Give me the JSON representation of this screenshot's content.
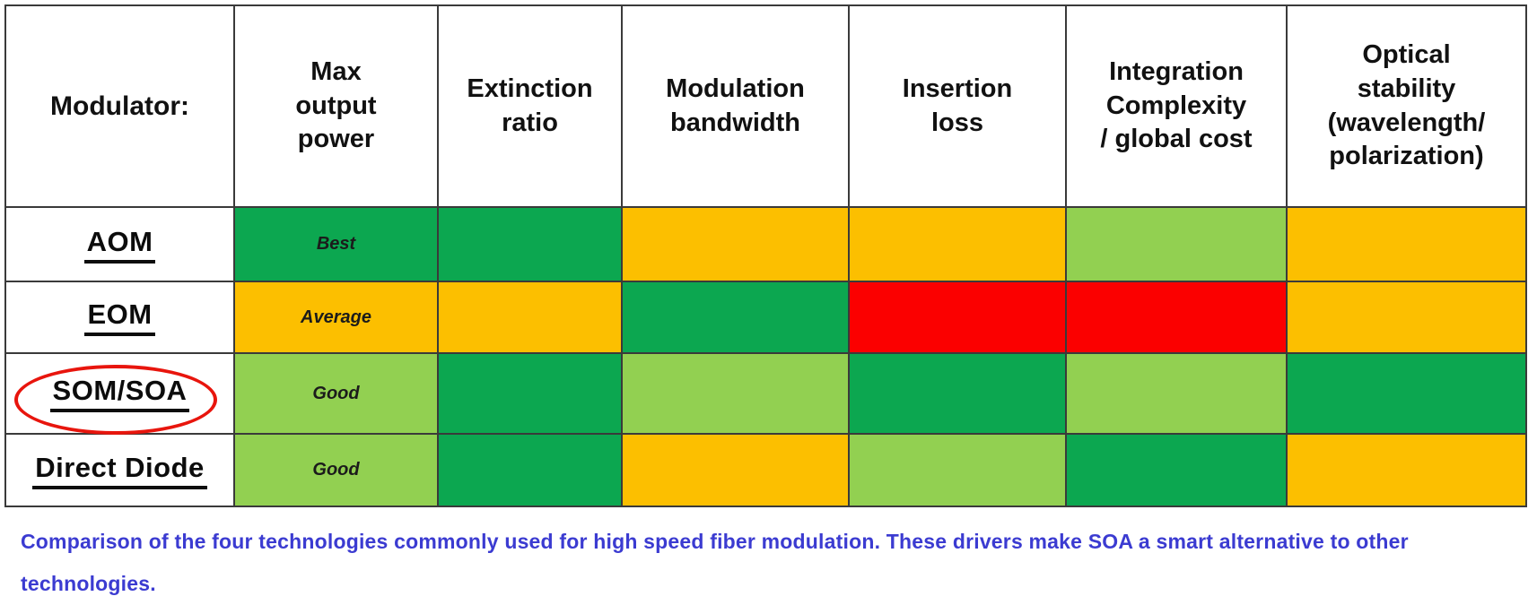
{
  "table": {
    "columns": [
      {
        "key": "modulator",
        "label": "Modulator:"
      },
      {
        "key": "max-output-power",
        "label": "Max\noutput\npower"
      },
      {
        "key": "extinction-ratio",
        "label": "Extinction\nratio"
      },
      {
        "key": "modulation-bandwidth",
        "label": "Modulation\nbandwidth"
      },
      {
        "key": "insertion-loss",
        "label": "Insertion\nloss"
      },
      {
        "key": "integration-complexity",
        "label": "Integration\nComplexity\n/ global cost"
      },
      {
        "key": "optical-stability",
        "label": "Optical\nstability\n(wavelength/\npolarization)"
      }
    ],
    "legend_colors": {
      "green": "#0CA750",
      "light-green": "#92D051",
      "amber": "#FCBF00",
      "red": "#FB0000"
    },
    "visible_rating_labels": {
      "green": "Best",
      "amber": "Average",
      "light-green": "Good"
    },
    "rows": [
      {
        "key": "aom",
        "label": "AOM",
        "circled": false,
        "cells": [
          {
            "level": "green",
            "label": "Best"
          },
          {
            "level": "green",
            "label": ""
          },
          {
            "level": "amber",
            "label": ""
          },
          {
            "level": "amber",
            "label": ""
          },
          {
            "level": "light-green",
            "label": ""
          },
          {
            "level": "amber",
            "label": ""
          }
        ]
      },
      {
        "key": "eom",
        "label": "EOM",
        "circled": false,
        "cells": [
          {
            "level": "amber",
            "label": "Average"
          },
          {
            "level": "amber",
            "label": ""
          },
          {
            "level": "green",
            "label": ""
          },
          {
            "level": "red",
            "label": ""
          },
          {
            "level": "red",
            "label": ""
          },
          {
            "level": "amber",
            "label": ""
          }
        ]
      },
      {
        "key": "som-soa",
        "label": "SOM/SOA",
        "circled": true,
        "cells": [
          {
            "level": "light-green",
            "label": "Good"
          },
          {
            "level": "green",
            "label": ""
          },
          {
            "level": "light-green",
            "label": ""
          },
          {
            "level": "green",
            "label": ""
          },
          {
            "level": "light-green",
            "label": ""
          },
          {
            "level": "green",
            "label": ""
          }
        ]
      },
      {
        "key": "direct-diode",
        "label": "Direct Diode",
        "circled": false,
        "cells": [
          {
            "level": "light-green",
            "label": "Good"
          },
          {
            "level": "green",
            "label": ""
          },
          {
            "level": "amber",
            "label": ""
          },
          {
            "level": "light-green",
            "label": ""
          },
          {
            "level": "green",
            "label": ""
          },
          {
            "level": "amber",
            "label": ""
          }
        ]
      }
    ]
  },
  "caption": {
    "text": "Comparison of the four technologies commonly used for high speed fiber modulation. These drivers make SOA a smart alternative to other technologies.",
    "color": "#3b3bd1"
  },
  "annotation": {
    "shape": "red-ellipse",
    "around": "SOM/SOA",
    "color": "#e8150d"
  },
  "chart_data": {
    "type": "table",
    "title": "",
    "columns": [
      "Modulator:",
      "Max output power",
      "Extinction ratio",
      "Modulation bandwidth",
      "Insertion loss",
      "Integration Complexity / global cost",
      "Optical stability (wavelength/polarization)"
    ],
    "rows": [
      {
        "modulator": "AOM",
        "ratings": [
          "green",
          "green",
          "amber",
          "amber",
          "light-green",
          "amber"
        ]
      },
      {
        "modulator": "EOM",
        "ratings": [
          "amber",
          "amber",
          "green",
          "red",
          "red",
          "amber"
        ]
      },
      {
        "modulator": "SOM/SOA",
        "ratings": [
          "light-green",
          "green",
          "light-green",
          "green",
          "light-green",
          "green"
        ]
      },
      {
        "modulator": "Direct Diode",
        "ratings": [
          "light-green",
          "green",
          "amber",
          "light-green",
          "green",
          "amber"
        ]
      }
    ],
    "color_legend": {
      "green": "Best",
      "amber": "Average",
      "light-green": "Good",
      "red": "(worst, unlabeled)"
    },
    "annotations": [
      "SOM/SOA row label circled in red"
    ]
  }
}
